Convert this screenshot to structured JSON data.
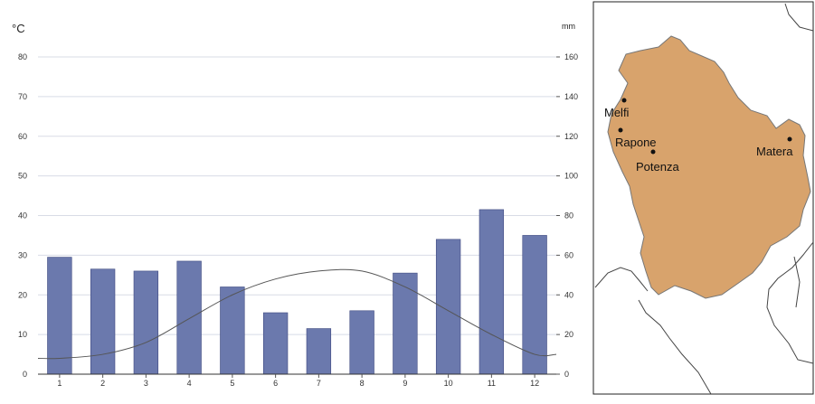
{
  "chart_data": {
    "type": "bar",
    "categories": [
      "1",
      "2",
      "3",
      "4",
      "5",
      "6",
      "7",
      "8",
      "9",
      "10",
      "11",
      "12"
    ],
    "series": [
      {
        "type": "bar",
        "axis": "right",
        "values": [
          59,
          53,
          52,
          57,
          44,
          31,
          23,
          32,
          51,
          68,
          83,
          70
        ]
      },
      {
        "type": "line",
        "axis": "left",
        "values": [
          4,
          5,
          8,
          14,
          20,
          24,
          26,
          26,
          22,
          16,
          10,
          5
        ]
      }
    ],
    "left_axis": {
      "unit": "°C",
      "ylim": [
        0,
        80
      ],
      "ticks": [
        "0",
        "10",
        "20",
        "30",
        "40",
        "50",
        "60",
        "70",
        "80"
      ]
    },
    "right_axis": {
      "unit": "mm",
      "ylim": [
        0,
        160
      ],
      "ticks": [
        "0",
        "20",
        "40",
        "60",
        "80",
        "100",
        "120",
        "140",
        "160"
      ]
    },
    "bar_color": "#6b79ad",
    "line_color": "#555555",
    "grid": true
  },
  "map": {
    "region_color": "#d8a36c",
    "cities": [
      {
        "name": "Melfi"
      },
      {
        "name": "Rapone"
      },
      {
        "name": "Potenza"
      },
      {
        "name": "Matera"
      }
    ]
  }
}
